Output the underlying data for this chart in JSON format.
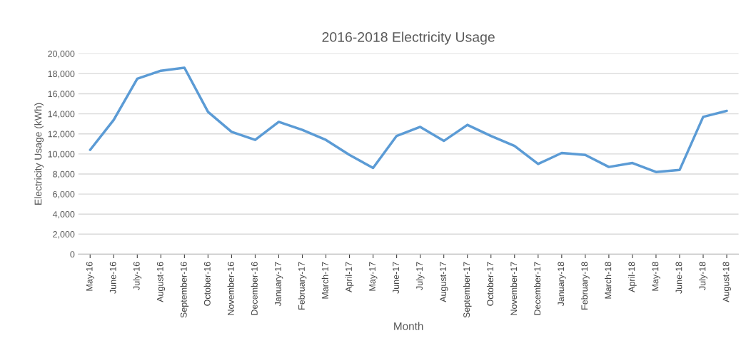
{
  "chart_data": {
    "type": "line",
    "title": "2016-2018 Electricity Usage",
    "xlabel": "Month",
    "ylabel": "Electricity Usage (kWh)",
    "categories": [
      "May-16",
      "June-16",
      "July-16",
      "August-16",
      "September-16",
      "October-16",
      "November-16",
      "December-16",
      "January-17",
      "February-17",
      "March-17",
      "April-17",
      "May-17",
      "June-17",
      "July-17",
      "August-17",
      "September-17",
      "October-17",
      "November-17",
      "December-17",
      "January-18",
      "February-18",
      "March-18",
      "April-18",
      "May-18",
      "June-18",
      "July-18",
      "August-18"
    ],
    "series": [
      {
        "color": "#5b9bd5",
        "values": [
          10400,
          13400,
          17500,
          18300,
          18600,
          14200,
          12200,
          11400,
          13200,
          12400,
          11400,
          9900,
          8600,
          11800,
          12700,
          11300,
          12900,
          11800,
          10800,
          9000,
          10100,
          9900,
          8700,
          9100,
          8200,
          8400,
          13700,
          14300
        ]
      }
    ],
    "ylim": [
      0,
      20000
    ],
    "yticks": [
      {
        "value": 0,
        "label": "0"
      },
      {
        "value": 2000,
        "label": "2,000"
      },
      {
        "value": 4000,
        "label": "4,000"
      },
      {
        "value": 6000,
        "label": "6,000"
      },
      {
        "value": 8000,
        "label": "8,000"
      },
      {
        "value": 10000,
        "label": "10,000"
      },
      {
        "value": 12000,
        "label": "12,000"
      },
      {
        "value": 14000,
        "label": "14,000"
      },
      {
        "value": 16000,
        "label": "16,000"
      },
      {
        "value": 18000,
        "label": "18,000"
      },
      {
        "value": 20000,
        "label": "20,000"
      }
    ],
    "grid": "y",
    "marker": "none",
    "line_style": "solid"
  }
}
